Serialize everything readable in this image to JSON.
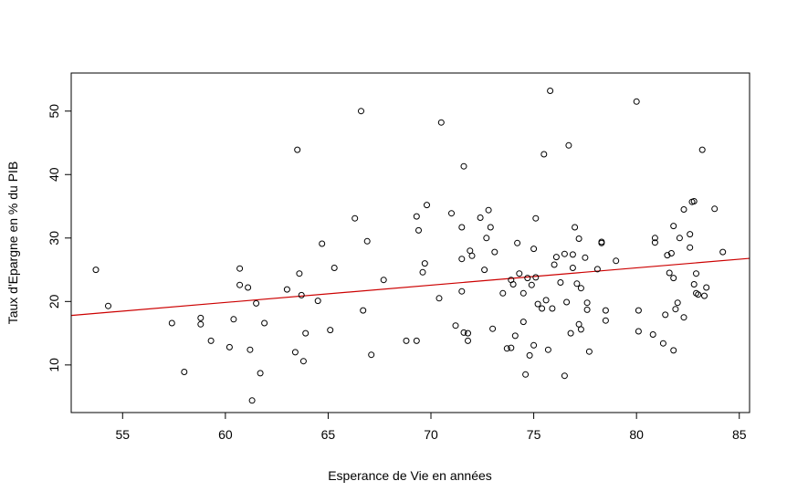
{
  "chart_data": {
    "type": "scatter",
    "title": "",
    "xlabel": "Esperance de Vie en années",
    "ylabel": "Taux d'Epargne en % du PIB",
    "xlim": [
      52.5,
      85.5
    ],
    "ylim": [
      2.5,
      56
    ],
    "xticks": [
      55,
      60,
      65,
      70,
      75,
      80,
      85
    ],
    "yticks": [
      10,
      20,
      30,
      40,
      50
    ],
    "grid": false,
    "legend": "none",
    "point_color": "#000000",
    "regression": {
      "color": "#cc0000",
      "x": [
        52.5,
        85.5
      ],
      "y": [
        17.8,
        26.8
      ]
    },
    "points": [
      [
        53.7,
        25.0
      ],
      [
        54.3,
        19.3
      ],
      [
        57.4,
        16.6
      ],
      [
        58.0,
        8.9
      ],
      [
        58.8,
        17.4
      ],
      [
        58.8,
        16.4
      ],
      [
        59.3,
        13.8
      ],
      [
        60.2,
        12.8
      ],
      [
        60.4,
        17.2
      ],
      [
        60.7,
        25.2
      ],
      [
        60.7,
        22.6
      ],
      [
        61.1,
        22.2
      ],
      [
        61.2,
        12.4
      ],
      [
        61.3,
        4.4
      ],
      [
        61.5,
        19.7
      ],
      [
        61.7,
        8.7
      ],
      [
        61.9,
        16.6
      ],
      [
        63.0,
        21.9
      ],
      [
        63.4,
        12.0
      ],
      [
        63.5,
        43.9
      ],
      [
        63.6,
        24.4
      ],
      [
        63.7,
        21.0
      ],
      [
        63.8,
        10.6
      ],
      [
        63.9,
        15.0
      ],
      [
        64.5,
        20.1
      ],
      [
        64.7,
        29.1
      ],
      [
        65.1,
        15.5
      ],
      [
        65.3,
        25.3
      ],
      [
        66.3,
        33.1
      ],
      [
        66.6,
        50.0
      ],
      [
        66.7,
        18.6
      ],
      [
        66.9,
        29.5
      ],
      [
        67.1,
        11.6
      ],
      [
        67.7,
        23.4
      ],
      [
        68.8,
        13.8
      ],
      [
        69.3,
        13.8
      ],
      [
        69.3,
        33.4
      ],
      [
        69.4,
        31.2
      ],
      [
        69.6,
        24.6
      ],
      [
        69.7,
        26.0
      ],
      [
        69.8,
        35.2
      ],
      [
        70.4,
        20.5
      ],
      [
        70.5,
        48.2
      ],
      [
        71.0,
        33.9
      ],
      [
        71.2,
        16.2
      ],
      [
        71.5,
        31.7
      ],
      [
        71.5,
        26.7
      ],
      [
        71.5,
        21.6
      ],
      [
        71.6,
        15.1
      ],
      [
        71.6,
        41.3
      ],
      [
        71.8,
        15.0
      ],
      [
        71.8,
        13.8
      ],
      [
        71.9,
        28.0
      ],
      [
        72.0,
        27.2
      ],
      [
        72.4,
        33.2
      ],
      [
        72.6,
        25.0
      ],
      [
        72.7,
        30.0
      ],
      [
        72.8,
        34.4
      ],
      [
        72.9,
        31.7
      ],
      [
        73.0,
        15.7
      ],
      [
        73.1,
        27.8
      ],
      [
        73.5,
        21.3
      ],
      [
        73.7,
        12.6
      ],
      [
        73.9,
        12.7
      ],
      [
        73.9,
        23.4
      ],
      [
        74.0,
        22.7
      ],
      [
        74.1,
        14.6
      ],
      [
        74.2,
        29.2
      ],
      [
        74.3,
        24.4
      ],
      [
        74.5,
        16.8
      ],
      [
        74.5,
        21.3
      ],
      [
        74.6,
        8.5
      ],
      [
        74.7,
        23.7
      ],
      [
        74.8,
        11.5
      ],
      [
        74.9,
        22.6
      ],
      [
        75.0,
        13.1
      ],
      [
        75.0,
        28.3
      ],
      [
        75.1,
        23.8
      ],
      [
        75.1,
        33.1
      ],
      [
        75.2,
        19.6
      ],
      [
        75.4,
        18.9
      ],
      [
        75.5,
        43.2
      ],
      [
        75.6,
        20.2
      ],
      [
        75.7,
        12.4
      ],
      [
        75.8,
        53.2
      ],
      [
        75.9,
        18.9
      ],
      [
        76.0,
        25.8
      ],
      [
        76.1,
        27.0
      ],
      [
        76.3,
        23.0
      ],
      [
        76.5,
        27.5
      ],
      [
        76.5,
        8.3
      ],
      [
        76.6,
        19.9
      ],
      [
        76.7,
        44.6
      ],
      [
        76.8,
        15.0
      ],
      [
        76.9,
        27.4
      ],
      [
        76.9,
        25.3
      ],
      [
        77.0,
        31.7
      ],
      [
        77.1,
        22.8
      ],
      [
        77.2,
        16.4
      ],
      [
        77.2,
        29.9
      ],
      [
        77.3,
        15.6
      ],
      [
        77.3,
        22.1
      ],
      [
        77.5,
        26.9
      ],
      [
        77.6,
        19.8
      ],
      [
        77.6,
        18.7
      ],
      [
        77.7,
        12.1
      ],
      [
        78.1,
        25.1
      ],
      [
        78.3,
        29.2
      ],
      [
        78.3,
        29.4
      ],
      [
        78.5,
        17.0
      ],
      [
        78.5,
        18.6
      ],
      [
        79.0,
        26.4
      ],
      [
        80.0,
        51.5
      ],
      [
        80.1,
        18.6
      ],
      [
        80.1,
        15.3
      ],
      [
        80.8,
        14.8
      ],
      [
        80.9,
        29.3
      ],
      [
        80.9,
        30.0
      ],
      [
        81.3,
        13.4
      ],
      [
        81.4,
        17.9
      ],
      [
        81.5,
        27.3
      ],
      [
        81.6,
        24.5
      ],
      [
        81.7,
        27.6
      ],
      [
        81.8,
        31.9
      ],
      [
        81.8,
        12.3
      ],
      [
        81.8,
        23.7
      ],
      [
        81.9,
        18.8
      ],
      [
        82.0,
        19.8
      ],
      [
        82.1,
        30.0
      ],
      [
        82.3,
        34.5
      ],
      [
        82.3,
        17.5
      ],
      [
        82.6,
        30.6
      ],
      [
        82.6,
        28.5
      ],
      [
        82.7,
        35.7
      ],
      [
        82.8,
        35.8
      ],
      [
        82.8,
        22.7
      ],
      [
        82.9,
        24.4
      ],
      [
        82.9,
        21.3
      ],
      [
        83.0,
        21.1
      ],
      [
        83.2,
        43.9
      ],
      [
        83.3,
        20.9
      ],
      [
        83.4,
        22.2
      ],
      [
        83.8,
        34.6
      ],
      [
        84.2,
        27.8
      ]
    ]
  }
}
